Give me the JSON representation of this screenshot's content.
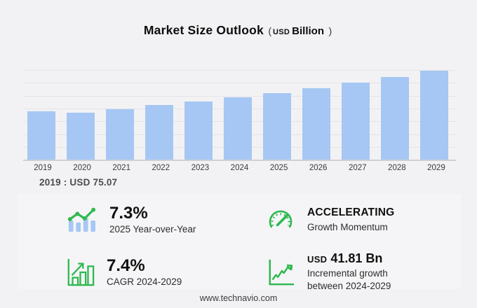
{
  "title": {
    "main": "Market Size Outlook",
    "paren_open": "(",
    "unit_small": "USD",
    "unit": "Billion",
    "paren_close": ")"
  },
  "chart_data": {
    "type": "bar",
    "title": "Market Size Outlook (USD Billion)",
    "categories": [
      "2019",
      "2020",
      "2021",
      "2022",
      "2023",
      "2024",
      "2025",
      "2026",
      "2027",
      "2028",
      "2029"
    ],
    "values": [
      75.07,
      73.6,
      79.1,
      84.9,
      90.9,
      97.03,
      104.11,
      111.9,
      120.2,
      129.1,
      138.84
    ],
    "xlabel": "",
    "ylabel": "USD Billion",
    "ylim": [
      0,
      140
    ],
    "grid": "horizontal",
    "legend": "none",
    "bar_color": "#a6c7f3"
  },
  "annotation": "2019 : USD  75.07",
  "stats": [
    {
      "icon": "trend-bars",
      "value": "7.3%",
      "label": "2025 Year-over-Year"
    },
    {
      "icon": "speedometer",
      "value": "ACCELERATING",
      "label": "Growth Momentum"
    },
    {
      "icon": "bar-growth",
      "value": "7.4%",
      "label": "CAGR 2024-2029"
    },
    {
      "icon": "line-growth",
      "prefix": "USD",
      "value": "41.81 Bn",
      "label": "Incremental growth between 2024-2029"
    }
  ],
  "footer": {
    "url": "www.technavio.com"
  },
  "colors": {
    "accent_green": "#2eb94e",
    "bar_blue": "#a6c7f3",
    "background": "#f2f2f4"
  }
}
